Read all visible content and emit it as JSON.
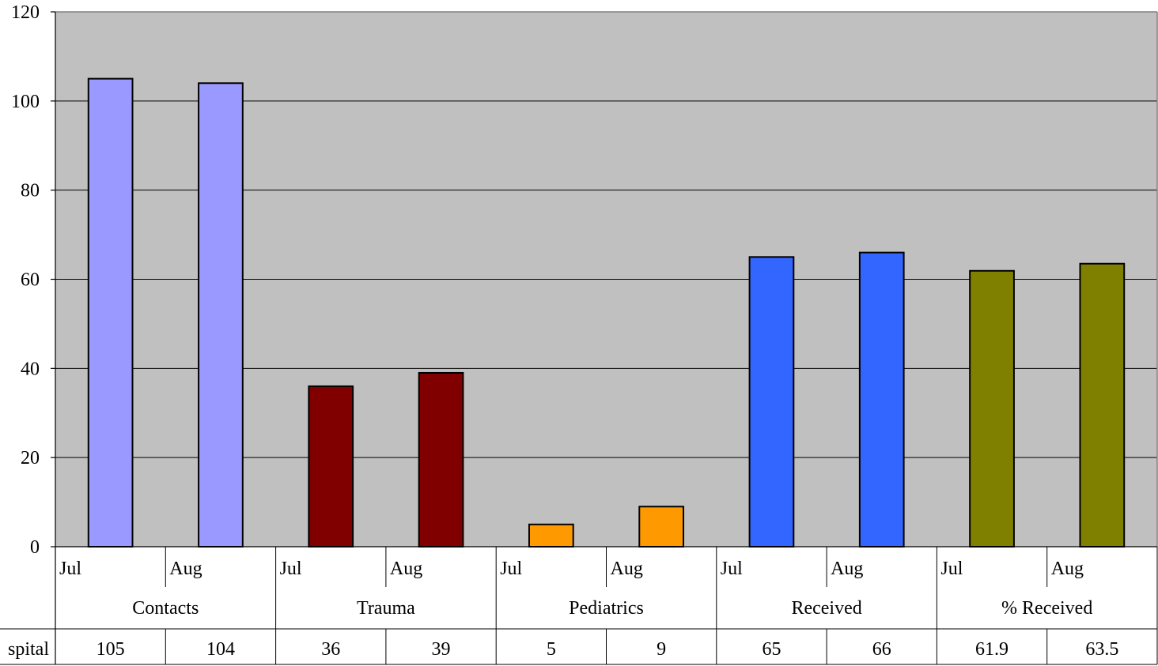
{
  "chart_data": {
    "type": "bar",
    "title": "",
    "xlabel": "",
    "ylabel": "",
    "ylim": [
      0,
      120
    ],
    "yticks": [
      0,
      20,
      40,
      60,
      80,
      100,
      120
    ],
    "grid": true,
    "plot_background": "#C0C0C0",
    "groups": [
      {
        "name": "Contacts",
        "color": "#9999FF",
        "items": [
          {
            "label": "Jul",
            "value": 105,
            "display": "105"
          },
          {
            "label": "Aug",
            "value": 104,
            "display": "104"
          }
        ]
      },
      {
        "name": "Trauma",
        "color": "#800000",
        "items": [
          {
            "label": "Jul",
            "value": 36,
            "display": "36"
          },
          {
            "label": "Aug",
            "value": 39,
            "display": "39"
          }
        ]
      },
      {
        "name": "Pediatrics",
        "color": "#FF9900",
        "items": [
          {
            "label": "Jul",
            "value": 5,
            "display": "5"
          },
          {
            "label": "Aug",
            "value": 9,
            "display": "9"
          }
        ]
      },
      {
        "name": "Received",
        "color": "#3366FF",
        "items": [
          {
            "label": "Jul",
            "value": 65,
            "display": "65"
          },
          {
            "label": "Aug",
            "value": 66,
            "display": "66"
          }
        ]
      },
      {
        "name": "% Received",
        "color": "#808000",
        "items": [
          {
            "label": "Jul",
            "value": 61.9,
            "display": "61.9"
          },
          {
            "label": "Aug",
            "value": 63.5,
            "display": "63.5"
          }
        ]
      }
    ],
    "table_row_label": "spital"
  }
}
